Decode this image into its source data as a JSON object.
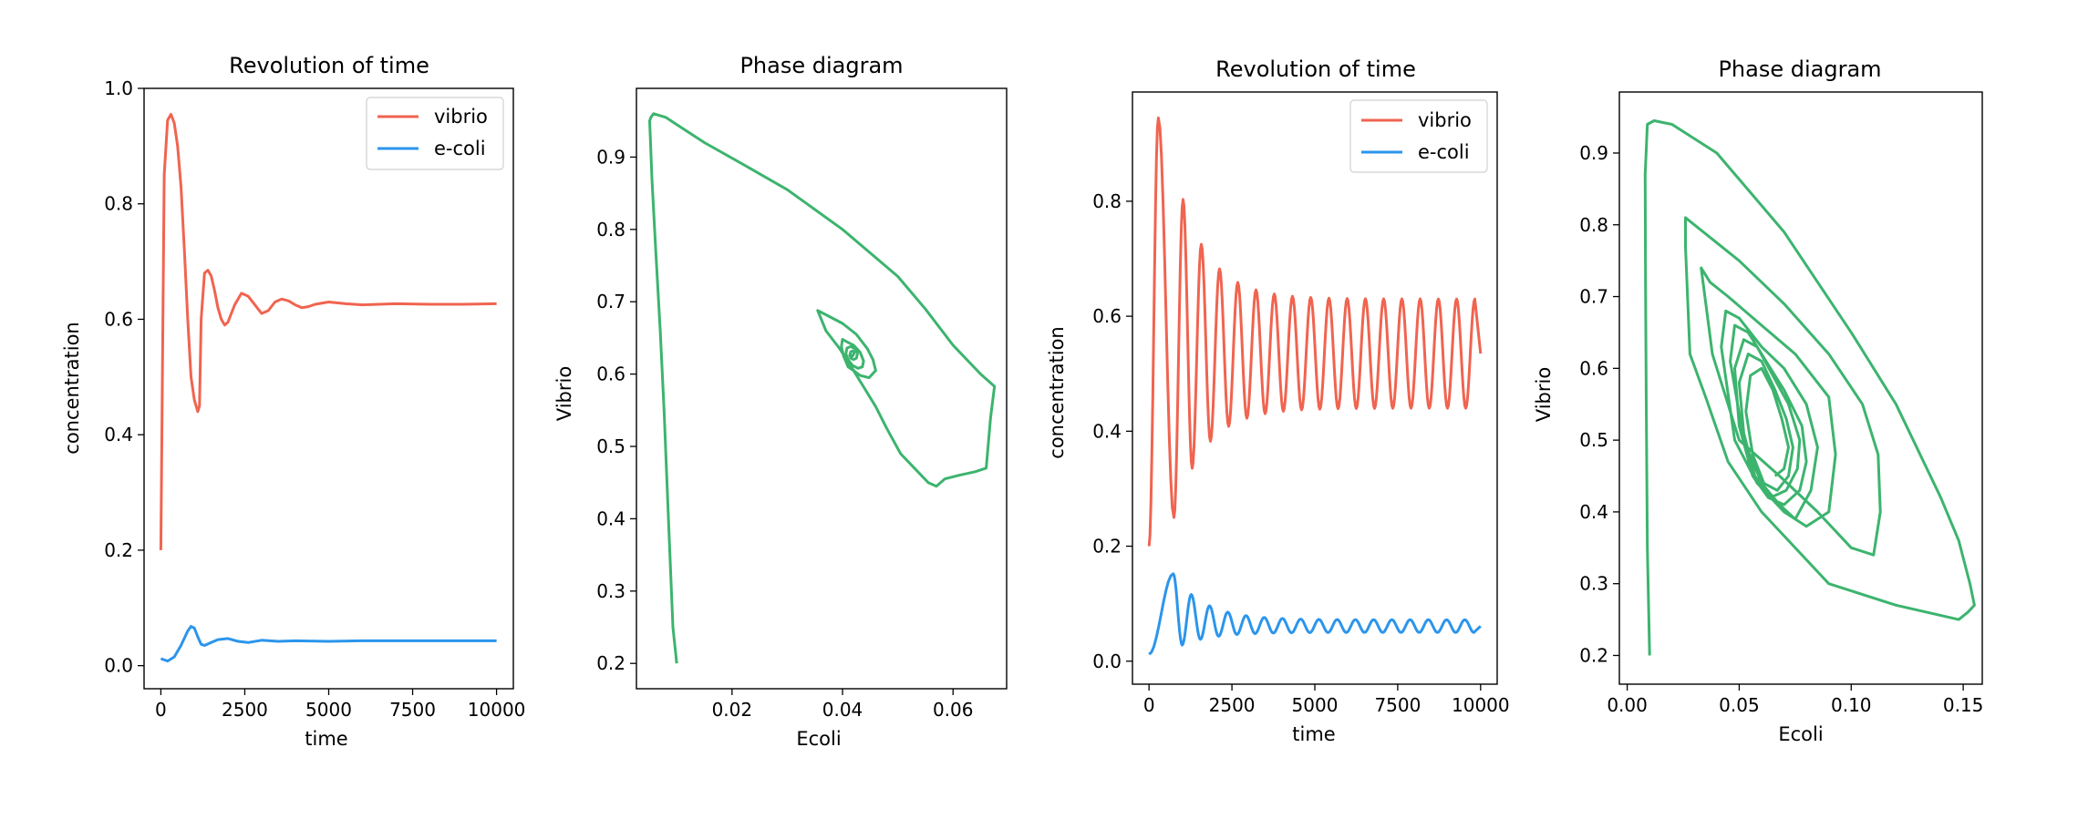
{
  "colors": {
    "vibrio": "#f06450",
    "ecoli": "#2b95ec",
    "phase": "#3cb46e"
  },
  "chart_data": [
    {
      "type": "line",
      "title": "Revolution of time",
      "xlabel": "time",
      "ylabel": "concentration",
      "xlim": [
        -500,
        10500
      ],
      "ylim": [
        -0.04,
        1.0
      ],
      "xticks": [
        0,
        2500,
        5000,
        7500,
        10000
      ],
      "xtick_labels": [
        "0",
        "2500",
        "5000",
        "7500",
        "10000"
      ],
      "yticks": [
        0.0,
        0.2,
        0.4,
        0.6,
        0.8,
        1.0
      ],
      "ytick_labels": [
        "0.0",
        "0.2",
        "0.4",
        "0.6",
        "0.8",
        "1.0"
      ],
      "legend_position": "top-right",
      "series": [
        {
          "name": "vibrio",
          "color_key": "vibrio",
          "x": [
            0,
            100,
            200,
            300,
            400,
            500,
            600,
            700,
            800,
            900,
            1000,
            1100,
            1150,
            1200,
            1300,
            1400,
            1500,
            1600,
            1700,
            1800,
            1900,
            2000,
            2100,
            2200,
            2400,
            2600,
            2800,
            3000,
            3200,
            3400,
            3600,
            3800,
            4000,
            4200,
            4400,
            4600,
            5000,
            5500,
            6000,
            6500,
            7000,
            8000,
            9000,
            10000
          ],
          "y": [
            0.2,
            0.85,
            0.945,
            0.955,
            0.94,
            0.9,
            0.83,
            0.72,
            0.6,
            0.5,
            0.46,
            0.44,
            0.45,
            0.6,
            0.68,
            0.685,
            0.675,
            0.65,
            0.62,
            0.6,
            0.59,
            0.595,
            0.61,
            0.625,
            0.645,
            0.64,
            0.625,
            0.61,
            0.615,
            0.63,
            0.635,
            0.632,
            0.625,
            0.62,
            0.622,
            0.626,
            0.63,
            0.627,
            0.625,
            0.626,
            0.627,
            0.626,
            0.626,
            0.627
          ]
        },
        {
          "name": "e-coli",
          "color_key": "ecoli",
          "x": [
            0,
            200,
            400,
            600,
            800,
            900,
            1000,
            1100,
            1200,
            1300,
            1500,
            1700,
            2000,
            2300,
            2600,
            3000,
            3500,
            4000,
            5000,
            6000,
            8000,
            10000
          ],
          "y": [
            0.012,
            0.008,
            0.015,
            0.035,
            0.06,
            0.068,
            0.065,
            0.05,
            0.037,
            0.035,
            0.04,
            0.045,
            0.047,
            0.042,
            0.04,
            0.044,
            0.042,
            0.043,
            0.042,
            0.043,
            0.043,
            0.043
          ]
        }
      ]
    },
    {
      "type": "line",
      "title": "Phase diagram",
      "xlabel": "Ecoli",
      "ylabel": "Vibrio",
      "xlim": [
        0.0027,
        0.0697
      ],
      "ylim": [
        0.165,
        0.995
      ],
      "xticks": [
        0.02,
        0.04,
        0.06
      ],
      "xtick_labels": [
        "0.02",
        "0.04",
        "0.06"
      ],
      "yticks": [
        0.2,
        0.3,
        0.4,
        0.5,
        0.6,
        0.7,
        0.8,
        0.9
      ],
      "ytick_labels": [
        "0.2",
        "0.3",
        "0.4",
        "0.5",
        "0.6",
        "0.7",
        "0.8",
        "0.9"
      ],
      "series": [
        {
          "color_key": "phase",
          "x": [
            0.01,
            0.0093,
            0.0085,
            0.0077,
            0.007,
            0.0062,
            0.0055,
            0.0051,
            0.0053,
            0.0058,
            0.0067,
            0.008,
            0.01,
            0.015,
            0.022,
            0.03,
            0.04,
            0.05,
            0.055,
            0.06,
            0.065,
            0.0675,
            0.0668,
            0.066,
            0.064,
            0.061,
            0.0585,
            0.057,
            0.0555,
            0.053,
            0.0505,
            0.048,
            0.046,
            0.044,
            0.042,
            0.0395,
            0.037,
            0.0355,
            0.037,
            0.04,
            0.0425,
            0.0445,
            0.0455,
            0.046,
            0.0448,
            0.0432,
            0.042,
            0.041,
            0.0402,
            0.0398,
            0.04,
            0.0407,
            0.042,
            0.0432,
            0.0438,
            0.0436,
            0.0428,
            0.0418,
            0.041,
            0.0406,
            0.0408,
            0.0415,
            0.0423,
            0.0427,
            0.0425,
            0.042,
            0.0415,
            0.0413,
            0.0415,
            0.0419,
            0.0421,
            0.042,
            0.0418,
            0.0417,
            0.0418
          ],
          "y": [
            0.2,
            0.25,
            0.4,
            0.55,
            0.66,
            0.77,
            0.87,
            0.95,
            0.955,
            0.96,
            0.958,
            0.955,
            0.945,
            0.92,
            0.89,
            0.855,
            0.8,
            0.735,
            0.69,
            0.64,
            0.6,
            0.583,
            0.54,
            0.47,
            0.465,
            0.46,
            0.455,
            0.445,
            0.45,
            0.47,
            0.49,
            0.525,
            0.555,
            0.58,
            0.605,
            0.635,
            0.66,
            0.688,
            0.682,
            0.67,
            0.655,
            0.635,
            0.62,
            0.605,
            0.595,
            0.598,
            0.605,
            0.61,
            0.625,
            0.638,
            0.648,
            0.645,
            0.64,
            0.63,
            0.618,
            0.61,
            0.608,
            0.612,
            0.62,
            0.628,
            0.636,
            0.638,
            0.635,
            0.628,
            0.622,
            0.62,
            0.622,
            0.626,
            0.631,
            0.632,
            0.63,
            0.627,
            0.625,
            0.626,
            0.627
          ]
        }
      ]
    },
    {
      "type": "line",
      "title": "Revolution of time",
      "xlabel": "time",
      "ylabel": "concentration",
      "xlim": [
        -500,
        10500
      ],
      "ylim": [
        -0.04,
        0.99
      ],
      "xticks": [
        0,
        2500,
        5000,
        7500,
        10000
      ],
      "xtick_labels": [
        "0",
        "2500",
        "5000",
        "7500",
        "10000"
      ],
      "yticks": [
        0.0,
        0.2,
        0.4,
        0.6,
        0.8
      ],
      "ytick_labels": [
        "0.0",
        "0.2",
        "0.4",
        "0.6",
        "0.8"
      ],
      "legend_position": "top-right",
      "series": [
        {
          "name": "vibrio",
          "color_key": "vibrio",
          "pattern": "damped-oscillation",
          "x_start": 0,
          "x_end": 10000,
          "y_start": 0.2,
          "first_peak": [
            280,
            0.945
          ],
          "first_trough": [
            750,
            0.25
          ],
          "period": 550,
          "peak_asymptote": 0.63,
          "trough_asymptote": 0.44
        },
        {
          "name": "e-coli",
          "color_key": "ecoli",
          "pattern": "damped-oscillation",
          "x_start": 0,
          "x_end": 10000,
          "y_start": 0.012,
          "first_peak": [
            730,
            0.152
          ],
          "first_trough": [
            1000,
            0.028
          ],
          "period": 550,
          "peak_asymptote": 0.072,
          "trough_asymptote": 0.05
        }
      ]
    },
    {
      "type": "line",
      "title": "Phase diagram",
      "xlabel": "Ecoli",
      "ylabel": "Vibrio",
      "xlim": [
        -0.0035,
        0.1585
      ],
      "ylim": [
        0.16,
        0.985
      ],
      "xticks": [
        0.0,
        0.05,
        0.1,
        0.15
      ],
      "xtick_labels": [
        "0.00",
        "0.05",
        "0.10",
        "0.15"
      ],
      "yticks": [
        0.2,
        0.3,
        0.4,
        0.5,
        0.6,
        0.7,
        0.8,
        0.9
      ],
      "ytick_labels": [
        "0.2",
        "0.3",
        "0.4",
        "0.5",
        "0.6",
        "0.7",
        "0.8",
        "0.9"
      ],
      "series": [
        {
          "color_key": "phase",
          "x": [
            0.01,
            0.009,
            0.0085,
            0.0082,
            0.008,
            0.009,
            0.012,
            0.02,
            0.04,
            0.07,
            0.1,
            0.12,
            0.14,
            0.148,
            0.153,
            0.155,
            0.152,
            0.148,
            0.12,
            0.09,
            0.06,
            0.045,
            0.035,
            0.028,
            0.026,
            0.026,
            0.03,
            0.05,
            0.07,
            0.09,
            0.105,
            0.112,
            0.113,
            0.11,
            0.1,
            0.085,
            0.068,
            0.05,
            0.038,
            0.033,
            0.037,
            0.045,
            0.06,
            0.075,
            0.09,
            0.093,
            0.09,
            0.08,
            0.07,
            0.058,
            0.048,
            0.042,
            0.044,
            0.05,
            0.06,
            0.07,
            0.08,
            0.085,
            0.082,
            0.075,
            0.068,
            0.06,
            0.052,
            0.046,
            0.048,
            0.054,
            0.062,
            0.07,
            0.078,
            0.08,
            0.077,
            0.07,
            0.063,
            0.056,
            0.05,
            0.048,
            0.052,
            0.058,
            0.065,
            0.072,
            0.077,
            0.076,
            0.071,
            0.064,
            0.057,
            0.052,
            0.05,
            0.054,
            0.06,
            0.066,
            0.071,
            0.074,
            0.072,
            0.067,
            0.061,
            0.056,
            0.053,
            0.055,
            0.06,
            0.065,
            0.069,
            0.072,
            0.07,
            0.066
          ],
          "y": [
            0.2,
            0.35,
            0.55,
            0.72,
            0.87,
            0.94,
            0.945,
            0.94,
            0.9,
            0.79,
            0.65,
            0.55,
            0.42,
            0.36,
            0.3,
            0.27,
            0.26,
            0.25,
            0.27,
            0.3,
            0.4,
            0.47,
            0.56,
            0.62,
            0.77,
            0.81,
            0.8,
            0.75,
            0.69,
            0.62,
            0.55,
            0.48,
            0.4,
            0.34,
            0.35,
            0.4,
            0.45,
            0.5,
            0.62,
            0.74,
            0.72,
            0.7,
            0.66,
            0.62,
            0.56,
            0.48,
            0.4,
            0.38,
            0.4,
            0.44,
            0.5,
            0.63,
            0.68,
            0.67,
            0.63,
            0.6,
            0.55,
            0.49,
            0.43,
            0.39,
            0.41,
            0.44,
            0.5,
            0.61,
            0.66,
            0.65,
            0.61,
            0.57,
            0.52,
            0.47,
            0.43,
            0.41,
            0.42,
            0.45,
            0.52,
            0.6,
            0.64,
            0.63,
            0.59,
            0.55,
            0.5,
            0.46,
            0.43,
            0.42,
            0.45,
            0.51,
            0.58,
            0.62,
            0.61,
            0.57,
            0.53,
            0.49,
            0.45,
            0.43,
            0.44,
            0.48,
            0.54,
            0.59,
            0.6,
            0.57,
            0.53,
            0.49,
            0.46,
            0.45
          ]
        }
      ]
    }
  ]
}
